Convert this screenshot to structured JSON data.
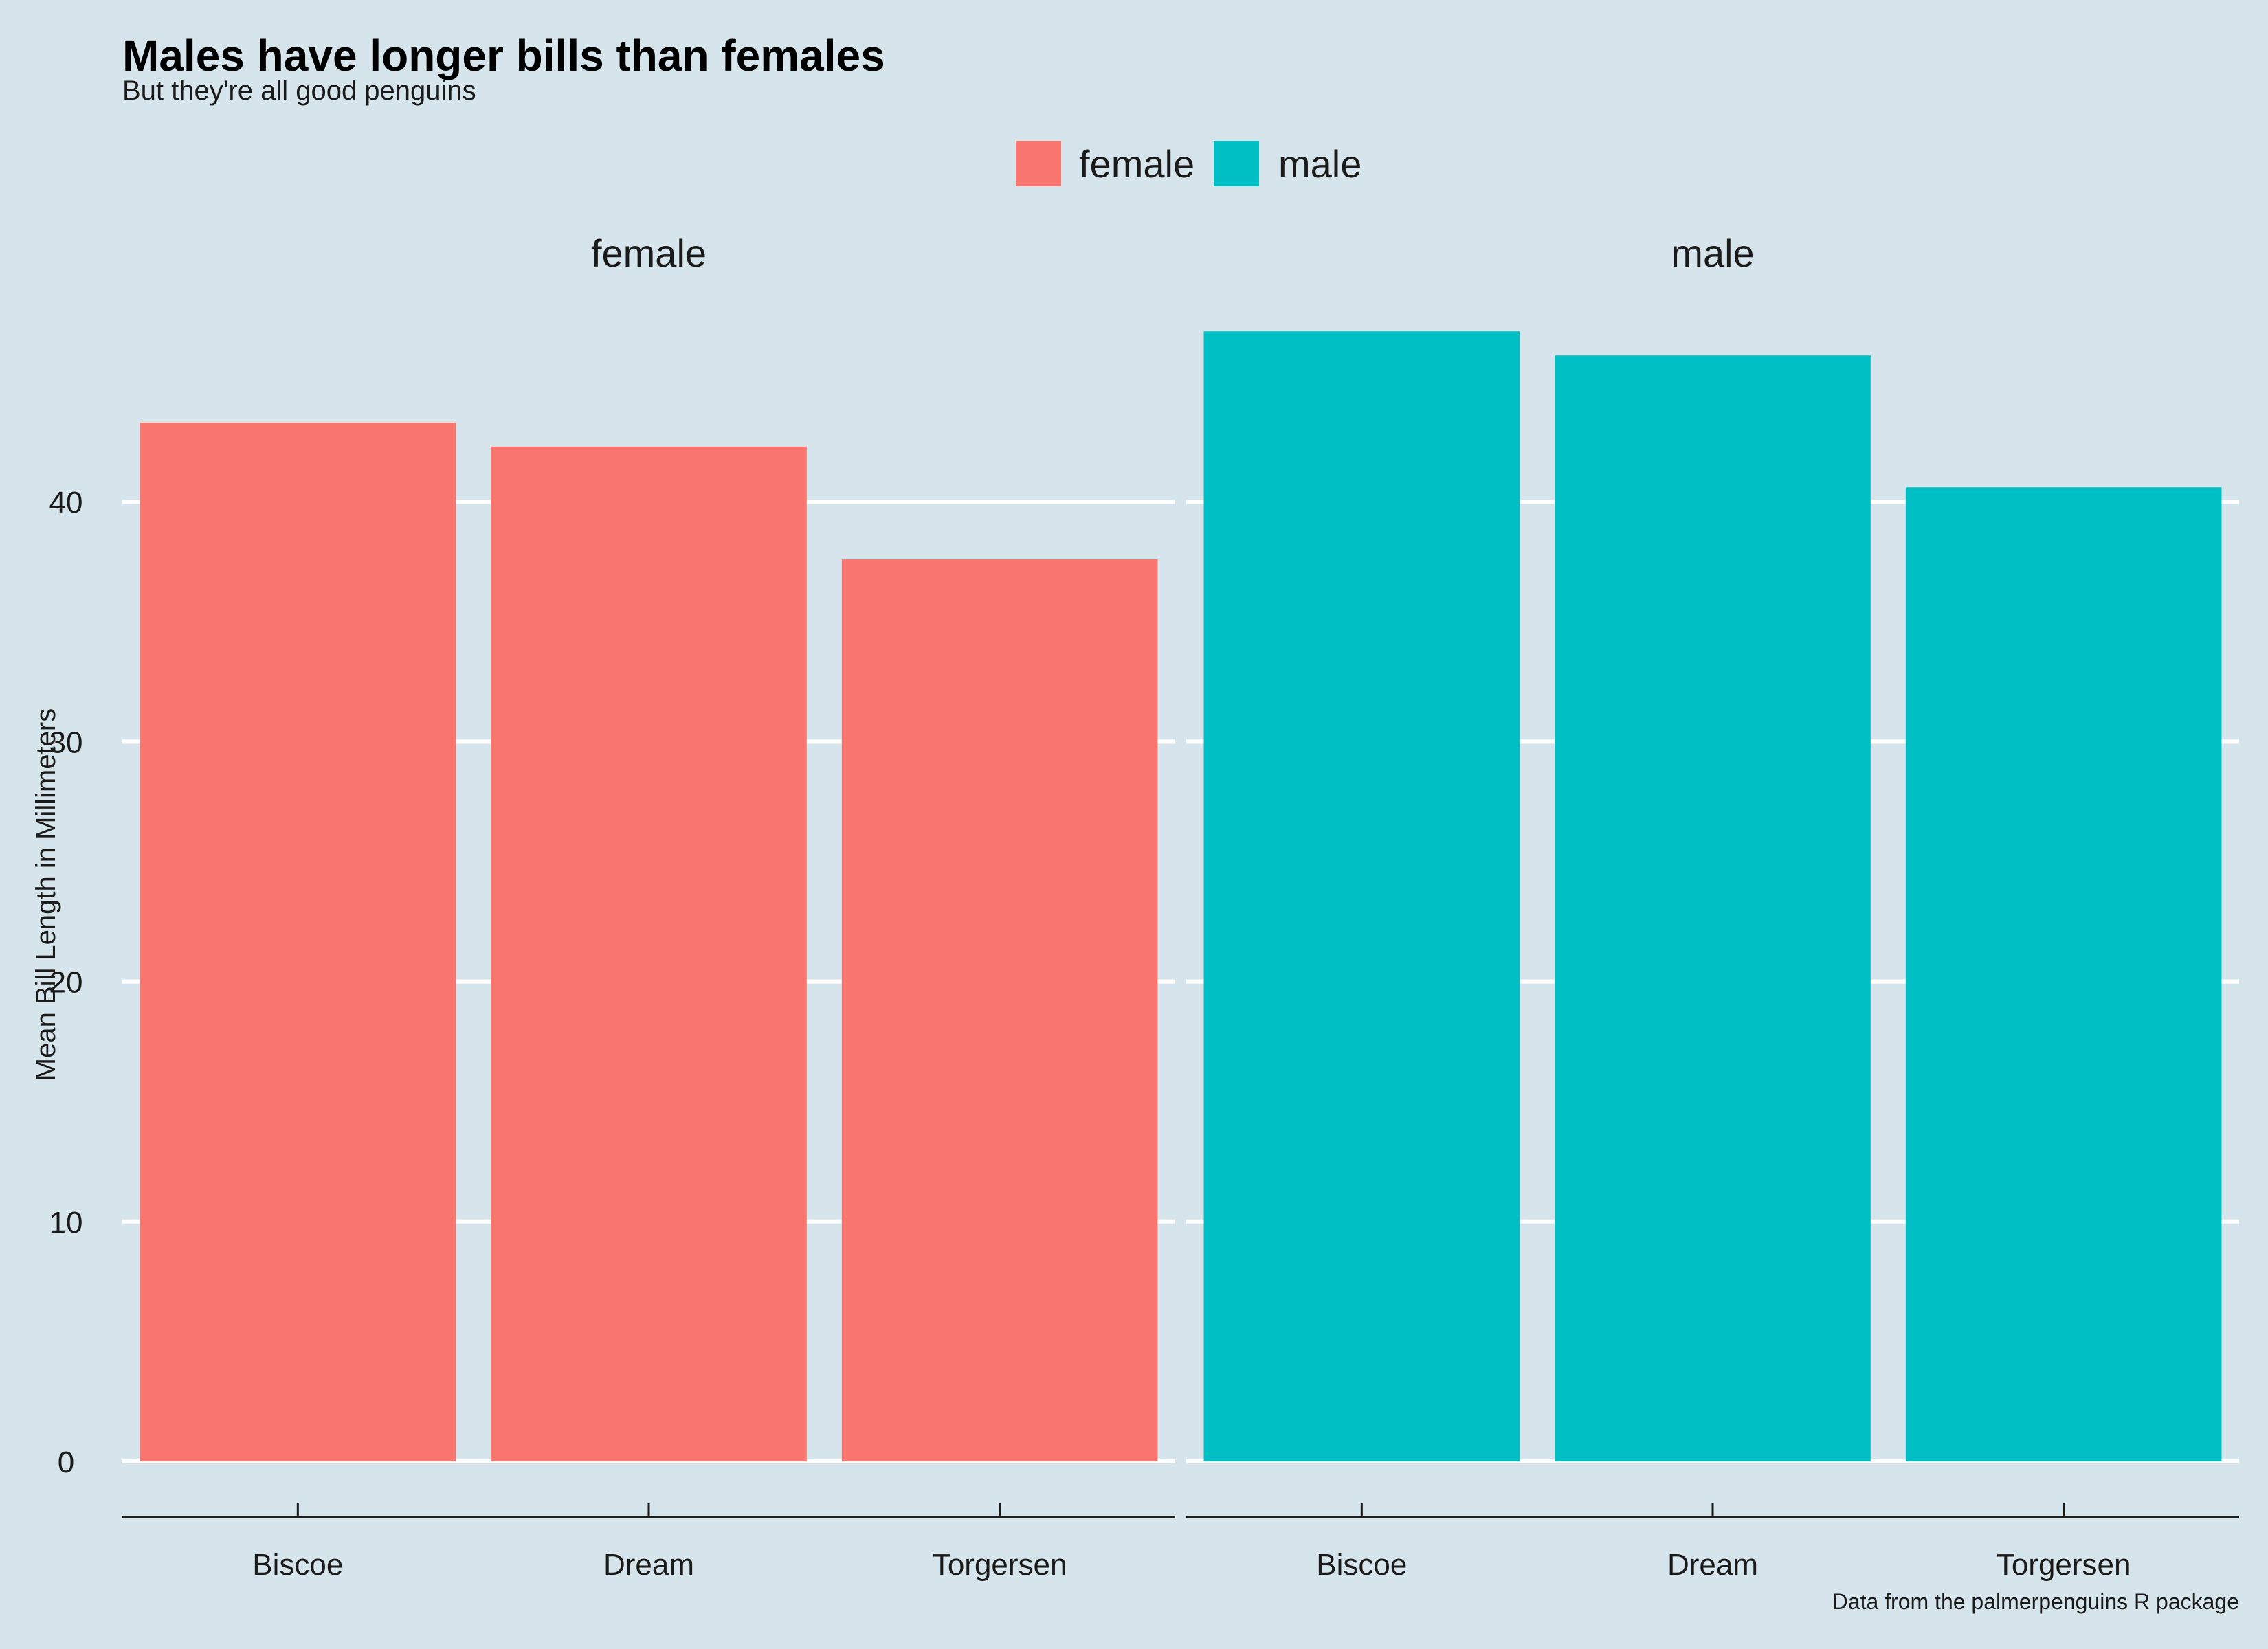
{
  "chart_data": {
    "type": "bar",
    "title": "Males have longer bills than females",
    "subtitle": "But they're all good penguins",
    "caption": "Data from the palmerpenguins R package",
    "xlabel": "",
    "ylabel": "Mean Bill Length in Millimeters",
    "ylim": [
      0,
      49.8
    ],
    "yticks": [
      0,
      10,
      20,
      30,
      40
    ],
    "grid": "horizontal major",
    "legend_position": "top",
    "categories": [
      "Biscoe",
      "Dream",
      "Torgersen"
    ],
    "facets": [
      {
        "label": "female",
        "color": "#f8766d",
        "values": [
          43.3,
          42.3,
          37.6
        ]
      },
      {
        "label": "male",
        "color": "#00bfc4",
        "values": [
          47.1,
          46.1,
          40.6
        ]
      }
    ],
    "legend": [
      {
        "label": "female",
        "color": "#f8766d"
      },
      {
        "label": "male",
        "color": "#00bfc4"
      }
    ],
    "colors": {
      "background": "#d6e4eb",
      "grid": "#ffffff",
      "axis": "#1a1a1a"
    }
  }
}
